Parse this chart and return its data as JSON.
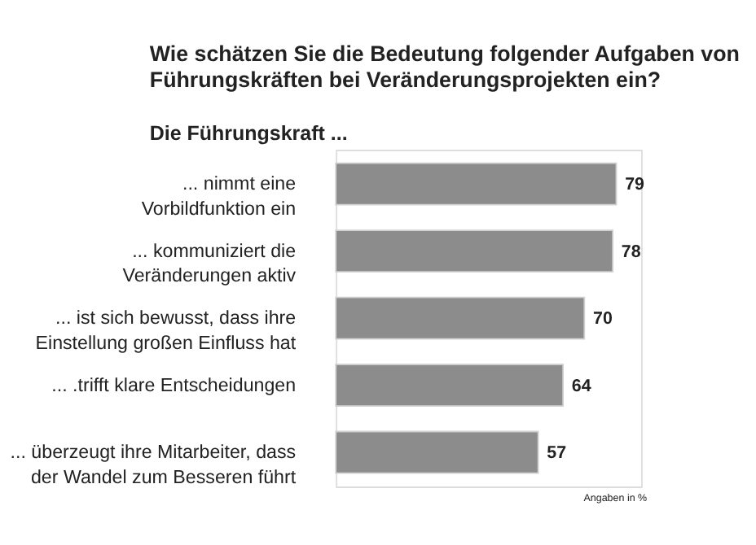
{
  "chart_data": {
    "type": "bar",
    "orientation": "horizontal",
    "title": "Wie schätzen Sie die Bedeutung folgender Aufgaben von Führungskräften bei Veränderungsprojekten ein?",
    "subtitle": "Die Führungskraft ...",
    "categories": [
      "... nimmt eine\nVorbildfunktion ein",
      "... kommuniziert die\nVeränderungen aktiv",
      "... ist sich bewusst, dass ihre\nEinstellung großen Einfluss hat",
      "... .trifft klare Entscheidungen",
      "... überzeugt ihre Mitarbeiter, dass\nder Wandel zum Besseren führt"
    ],
    "values": [
      79,
      78,
      70,
      64,
      57
    ],
    "color": "#8c8c8c",
    "xlim": [
      0,
      86
    ],
    "data_labels": true,
    "tick_labels": "y",
    "annotations": [
      "Angaben in %"
    ]
  }
}
